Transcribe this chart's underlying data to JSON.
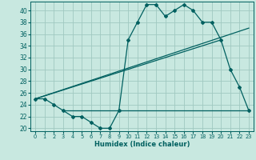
{
  "title": "",
  "xlabel": "Humidex (Indice chaleur)",
  "xlim": [
    -0.5,
    23.5
  ],
  "ylim": [
    19.5,
    41.5
  ],
  "yticks": [
    20,
    22,
    24,
    26,
    28,
    30,
    32,
    34,
    36,
    38,
    40
  ],
  "xticks": [
    0,
    1,
    2,
    3,
    4,
    5,
    6,
    7,
    8,
    9,
    10,
    11,
    12,
    13,
    14,
    15,
    16,
    17,
    18,
    19,
    20,
    21,
    22,
    23
  ],
  "bg_color": "#c8e8e0",
  "line_color": "#006060",
  "grid_color": "#a0c8c0",
  "line1_x": [
    0,
    1,
    2,
    3,
    4,
    5,
    6,
    7,
    8,
    9,
    10,
    11,
    12,
    13,
    14,
    15,
    16,
    17,
    18,
    19,
    20,
    21,
    22,
    23
  ],
  "line1_y": [
    25,
    25,
    24,
    23,
    22,
    22,
    21,
    20,
    20,
    23,
    35,
    38,
    41,
    41,
    39,
    40,
    41,
    40,
    38,
    38,
    35,
    30,
    27,
    23
  ],
  "line2_x": [
    0,
    20
  ],
  "line2_y": [
    25,
    35
  ],
  "line3_x": [
    0,
    23
  ],
  "line3_y": [
    25,
    37
  ],
  "line4_x": [
    3,
    23
  ],
  "line4_y": [
    23,
    23
  ]
}
